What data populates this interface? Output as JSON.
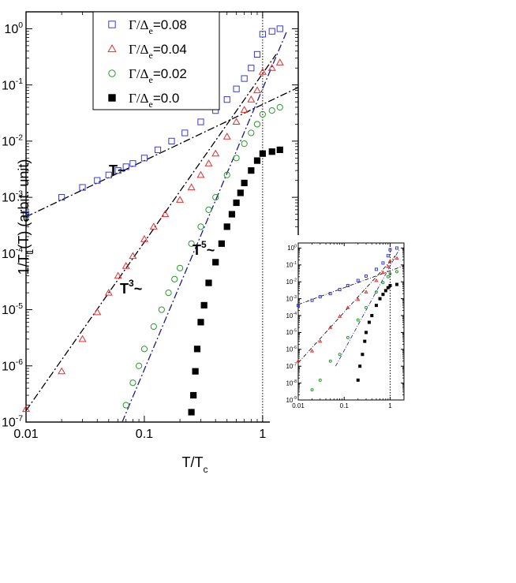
{
  "chart_data": [
    {
      "type": "scatter",
      "xscale": "log",
      "yscale": "log",
      "xlim": [
        0.01,
        2
      ],
      "ylim": [
        1e-07,
        2
      ],
      "xticks": [
        "0.01",
        "0.1",
        "1"
      ],
      "yticks": [
        "10",
        "10",
        "10",
        "10",
        "10",
        "10",
        "10",
        "10"
      ],
      "ytick_exponents": [
        "-7",
        "-6",
        "-5",
        "-4",
        "-3",
        "-2",
        "-1",
        "0"
      ],
      "xlabel": "T/T",
      "xlabel_sub": "c",
      "ylabel": "1/T",
      "ylabel_sub": "1",
      "ylabel_rest": "(T) (arbit. unit)",
      "legend_position": "top-left",
      "vline_x": 1,
      "series": [
        {
          "name": "Γ/Δ",
          "name_sub": "e",
          "name_value": "=0.08",
          "marker": "open-square",
          "color": "#3a3ad8",
          "x": [
            0.01,
            0.02,
            0.03,
            0.04,
            0.05,
            0.06,
            0.07,
            0.08,
            0.1,
            0.13,
            0.17,
            0.22,
            0.3,
            0.4,
            0.5,
            0.6,
            0.7,
            0.8,
            0.9,
            1.0,
            1.2,
            1.4
          ],
          "y": [
            0.0005,
            0.001,
            0.0015,
            0.002,
            0.0025,
            0.003,
            0.0035,
            0.004,
            0.005,
            0.007,
            0.01,
            0.014,
            0.022,
            0.035,
            0.055,
            0.085,
            0.13,
            0.2,
            0.35,
            0.8,
            0.9,
            1.0
          ]
        },
        {
          "name": "Γ/Δ",
          "name_sub": "e",
          "name_value": "=0.04",
          "marker": "open-triangle",
          "color": "#e03030",
          "x": [
            0.01,
            0.02,
            0.03,
            0.04,
            0.05,
            0.06,
            0.07,
            0.08,
            0.1,
            0.12,
            0.15,
            0.2,
            0.25,
            0.3,
            0.35,
            0.4,
            0.5,
            0.6,
            0.7,
            0.8,
            0.9,
            1.0,
            1.2,
            1.4
          ],
          "y": [
            1.7e-07,
            8e-07,
            3e-06,
            9e-06,
            2e-05,
            4e-05,
            6e-05,
            9e-05,
            0.00018,
            0.0003,
            0.0005,
            0.0009,
            0.0015,
            0.0025,
            0.004,
            0.006,
            0.012,
            0.022,
            0.036,
            0.055,
            0.08,
            0.17,
            0.2,
            0.25
          ]
        },
        {
          "name": "Γ/Δ",
          "name_sub": "e",
          "name_value": "=0.02",
          "marker": "open-circle",
          "color": "#2a9a2a",
          "x": [
            0.07,
            0.08,
            0.09,
            0.1,
            0.12,
            0.14,
            0.16,
            0.18,
            0.2,
            0.25,
            0.3,
            0.35,
            0.4,
            0.5,
            0.6,
            0.7,
            0.8,
            0.9,
            1.0,
            1.2,
            1.4
          ],
          "y": [
            2e-07,
            5e-07,
            1e-06,
            2e-06,
            5e-06,
            1e-05,
            2e-05,
            3.5e-05,
            5.5e-05,
            0.00015,
            0.0003,
            0.0006,
            0.001,
            0.0025,
            0.005,
            0.009,
            0.014,
            0.02,
            0.03,
            0.035,
            0.04
          ]
        },
        {
          "name": "Γ/Δ",
          "name_sub": "e",
          "name_value": "=0.0",
          "marker": "filled-square",
          "color": "#000000",
          "x": [
            0.25,
            0.26,
            0.27,
            0.28,
            0.3,
            0.32,
            0.35,
            0.4,
            0.45,
            0.5,
            0.55,
            0.6,
            0.65,
            0.7,
            0.8,
            0.9,
            1.0,
            1.2,
            1.4
          ],
          "y": [
            1.5e-07,
            3e-07,
            8e-07,
            2e-06,
            6e-06,
            1.2e-05,
            3e-05,
            7e-05,
            0.00015,
            0.0003,
            0.0005,
            0.0008,
            0.0012,
            0.0018,
            0.003,
            0.0045,
            0.006,
            0.0065,
            0.007
          ]
        }
      ],
      "fit_lines": [
        {
          "style": "dash-dot",
          "color": "#000000",
          "x": [
            0.01,
            2
          ],
          "y": [
            0.00045,
            0.09
          ]
        },
        {
          "style": "dash-dot",
          "color": "#000000",
          "x": [
            0.01,
            1.3
          ],
          "y": [
            1.6e-07,
            0.35
          ]
        },
        {
          "style": "dash-dot",
          "color": "#1a1a8c",
          "x": [
            0.065,
            1.6
          ],
          "y": [
            1e-07,
            0.9
          ]
        }
      ],
      "annotations": [
        {
          "text": "T~",
          "superscript": ""
        },
        {
          "text": "T",
          "superscript": "3",
          "after": "~"
        },
        {
          "text": "T",
          "superscript": "5",
          "after": "~"
        }
      ]
    },
    {
      "type": "scatter",
      "role": "inset",
      "xscale": "log",
      "yscale": "log",
      "xlim": [
        0.01,
        2
      ],
      "ylim": [
        1e-09,
        2
      ],
      "xticks": [
        "0.01",
        "0.1",
        "1"
      ],
      "yticks": [
        "10",
        "10",
        "10",
        "10",
        "10",
        "10",
        "10",
        "10",
        "10",
        "10"
      ],
      "ytick_exponents": [
        "-9",
        "-8",
        "-7",
        "-6",
        "-5",
        "-4",
        "-3",
        "-2",
        "-1",
        "0"
      ],
      "vline_x": 1,
      "series": [
        {
          "marker": "open-square",
          "color": "#3a3ad8",
          "x": [
            0.01,
            0.02,
            0.03,
            0.05,
            0.08,
            0.12,
            0.2,
            0.3,
            0.5,
            0.7,
            0.9,
            1.0,
            1.4
          ],
          "y": [
            0.0004,
            0.0008,
            0.0013,
            0.002,
            0.0035,
            0.006,
            0.012,
            0.022,
            0.055,
            0.13,
            0.35,
            0.8,
            1.0
          ]
        },
        {
          "marker": "open-triangle",
          "color": "#e03030",
          "x": [
            0.01,
            0.02,
            0.03,
            0.05,
            0.08,
            0.12,
            0.2,
            0.3,
            0.5,
            0.7,
            0.9,
            1.0,
            1.4
          ],
          "y": [
            2e-07,
            8e-07,
            3e-06,
            2e-05,
            9e-05,
            0.0003,
            0.0009,
            0.0025,
            0.012,
            0.036,
            0.08,
            0.17,
            0.25
          ]
        },
        {
          "marker": "open-circle",
          "color": "#2a9a2a",
          "x": [
            0.02,
            0.03,
            0.05,
            0.08,
            0.12,
            0.2,
            0.3,
            0.5,
            0.7,
            0.9,
            1.0,
            1.4
          ],
          "y": [
            4e-09,
            1.5e-08,
            2e-07,
            5e-07,
            5e-06,
            5.5e-05,
            0.0003,
            0.0025,
            0.009,
            0.02,
            0.03,
            0.04
          ]
        },
        {
          "marker": "filled-square",
          "color": "#000000",
          "x": [
            0.2,
            0.22,
            0.25,
            0.28,
            0.3,
            0.35,
            0.4,
            0.5,
            0.6,
            0.7,
            0.8,
            0.9,
            1.0,
            1.4
          ],
          "y": [
            1.5e-08,
            1e-07,
            5e-07,
            3e-06,
            1e-05,
            4e-05,
            0.0001,
            0.0004,
            0.001,
            0.0018,
            0.003,
            0.0045,
            0.006,
            0.007
          ]
        }
      ]
    }
  ]
}
